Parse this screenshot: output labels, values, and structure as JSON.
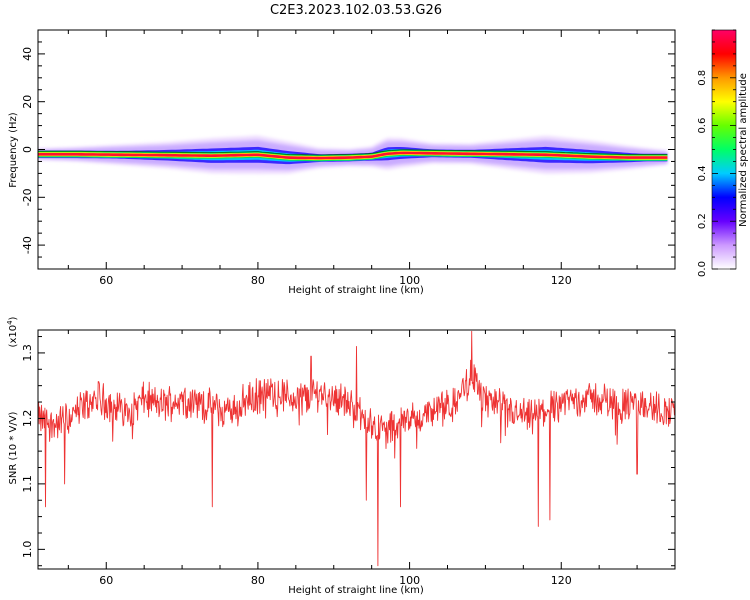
{
  "title": "C2E3.2023.102.03.53.G26",
  "chart_data": [
    {
      "type": "heatmap",
      "xlabel": "Height of straight line (km)",
      "ylabel": "Frequency (Hz)",
      "xlim": [
        51,
        135
      ],
      "ylim": [
        -50,
        50
      ],
      "xticks": [
        "60",
        "80",
        "100",
        "120"
      ],
      "xtick_values": [
        60,
        80,
        100,
        120
      ],
      "yticks": [
        "-40",
        "-20",
        "0",
        "20",
        "40"
      ],
      "ytick_values": [
        -40,
        -20,
        0,
        20,
        40
      ],
      "colorbar": {
        "label": "Normalized spectral amplitude",
        "range": [
          0,
          1
        ],
        "ticks": [
          "0.0",
          "0.2",
          "0.4",
          "0.6",
          "0.8"
        ],
        "tick_values": [
          0.0,
          0.2,
          0.4,
          0.6,
          0.8
        ],
        "colormap": [
          "#ffffff",
          "#cc99ff",
          "#6600ff",
          "#0000ff",
          "#00ccff",
          "#00ff66",
          "#66ff00",
          "#ffff00",
          "#ff9900",
          "#ff0000",
          "#ff0066"
        ]
      },
      "ridge": {
        "x": [
          51,
          56,
          62,
          68,
          74,
          80,
          84,
          88,
          92,
          95,
          97,
          99,
          103,
          108,
          113,
          118,
          124,
          129,
          134
        ],
        "freq_hz": [
          -2,
          -2,
          -2.2,
          -2.4,
          -2.6,
          -2.2,
          -3.4,
          -3.6,
          -3.4,
          -3.0,
          -1.8,
          -1.4,
          -1.6,
          -1.8,
          -2.0,
          -2.2,
          -3.0,
          -3.4,
          -3.4
        ],
        "halo_halfwidth_hz": [
          1.5,
          2,
          3,
          4,
          5.5,
          6,
          5,
          3,
          2.5,
          3,
          5,
          4.5,
          3,
          3,
          4.5,
          6,
          5,
          3.5,
          2
        ]
      }
    },
    {
      "type": "line",
      "xlabel": "Height of straight line (km)",
      "ylabel": "SNR (10 * V/V)",
      "multiplier_base": "(x10",
      "multiplier_exp": "4",
      "multiplier_end": ")",
      "xlim": [
        51,
        135
      ],
      "ylim": [
        0.97,
        1.335
      ],
      "xticks": [
        "60",
        "80",
        "100",
        "120"
      ],
      "xtick_values": [
        60,
        80,
        100,
        120
      ],
      "yticks": [
        "1.0",
        "1.1",
        "1.2",
        "1.3"
      ],
      "ytick_values": [
        1.0,
        1.1,
        1.2,
        1.3
      ],
      "series": [
        {
          "color": "#ee3333",
          "baseline": {
            "x": [
              51,
              53,
              55,
              57,
              59,
              61,
              63,
              65,
              67,
              70,
              73,
              76,
              79,
              82,
              85,
              88,
              91,
              93,
              95,
              97,
              99,
              101,
              103,
              106,
              108,
              110,
              113,
              116,
              119,
              122,
              125,
              128,
              131,
              134
            ],
            "y": [
              1.2,
              1.19,
              1.2,
              1.22,
              1.23,
              1.22,
              1.21,
              1.23,
              1.22,
              1.23,
              1.22,
              1.21,
              1.23,
              1.24,
              1.23,
              1.24,
              1.23,
              1.21,
              1.19,
              1.18,
              1.2,
              1.2,
              1.21,
              1.22,
              1.27,
              1.23,
              1.21,
              1.2,
              1.22,
              1.23,
              1.23,
              1.22,
              1.22,
              1.21
            ]
          },
          "noise_amplitude": 0.022,
          "dips": [
            {
              "x": 52,
              "y": 1.065
            },
            {
              "x": 54.5,
              "y": 1.1
            },
            {
              "x": 74,
              "y": 1.065
            },
            {
              "x": 94.3,
              "y": 1.075
            },
            {
              "x": 95.8,
              "y": 0.975
            },
            {
              "x": 98.8,
              "y": 1.065
            },
            {
              "x": 117,
              "y": 1.035
            },
            {
              "x": 118.5,
              "y": 1.045
            },
            {
              "x": 130,
              "y": 1.115
            }
          ],
          "peaks": [
            {
              "x": 108.2,
              "y": 1.333
            },
            {
              "x": 93,
              "y": 1.31
            },
            {
              "x": 87,
              "y": 1.295
            }
          ]
        }
      ]
    }
  ]
}
